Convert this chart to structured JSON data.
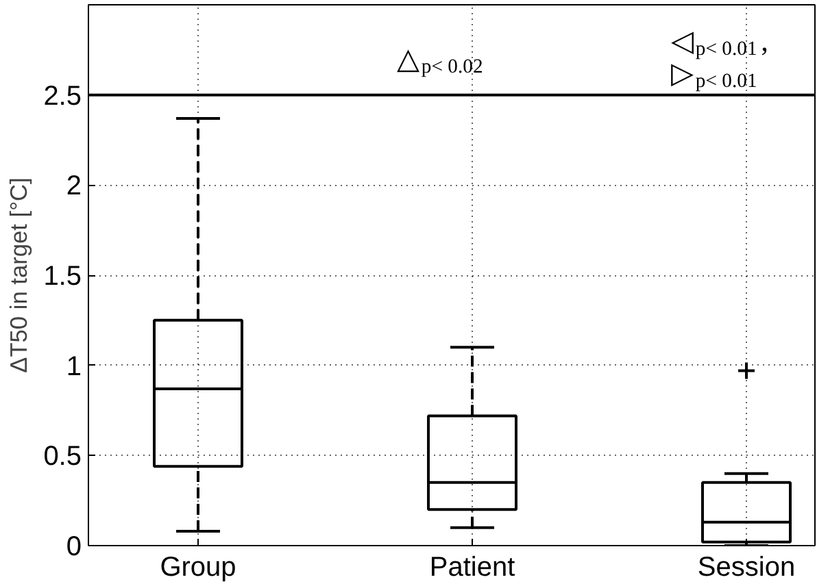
{
  "chart_data": {
    "type": "box",
    "ylabel": "ΔT50 in target [°C]",
    "categories": [
      "Group",
      "Patient",
      "Session"
    ],
    "boxes": [
      {
        "low": 0.08,
        "q1": 0.44,
        "median": 0.87,
        "q3": 1.25,
        "high": 2.37
      },
      {
        "low": 0.1,
        "q1": 0.2,
        "median": 0.35,
        "q3": 0.72,
        "high": 1.1
      },
      {
        "low": 0.0,
        "q1": 0.02,
        "median": 0.13,
        "q3": 0.35,
        "high": 0.4,
        "outliers": [
          0.97
        ]
      }
    ],
    "color": "#000000",
    "ylim": [
      0,
      3.0
    ],
    "yticks": [
      0,
      0.5,
      1,
      1.5,
      2,
      2.5
    ],
    "grid": true,
    "ref_lines": [
      {
        "axis": "y",
        "value": 2.5,
        "color": "#000000",
        "line_style": "solid"
      }
    ],
    "annotations": [
      "△$_{p< 0.02}$",
      "◁$_{p< 0.01}$,",
      "▷$_{p< 0.01}$"
    ]
  }
}
